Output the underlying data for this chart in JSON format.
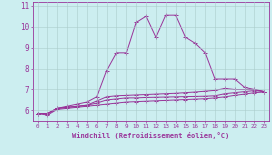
{
  "xlabel": "Windchill (Refroidissement éolien,°C)",
  "background_color": "#cceef0",
  "grid_color": "#aacccc",
  "line_color": "#993399",
  "xlim": [
    -0.5,
    23.5
  ],
  "ylim": [
    5.5,
    11.2
  ],
  "xticks": [
    0,
    1,
    2,
    3,
    4,
    5,
    6,
    7,
    8,
    9,
    10,
    11,
    12,
    13,
    14,
    15,
    16,
    17,
    18,
    19,
    20,
    21,
    22,
    23
  ],
  "yticks": [
    6,
    7,
    8,
    9,
    10,
    11
  ],
  "series": [
    [
      5.85,
      5.85,
      6.1,
      6.15,
      6.2,
      6.25,
      6.35,
      6.5,
      6.55,
      6.6,
      6.6,
      6.62,
      6.63,
      6.64,
      6.65,
      6.66,
      6.67,
      6.68,
      6.7,
      6.8,
      6.85,
      6.9,
      6.95,
      6.9
    ],
    [
      5.85,
      5.78,
      6.05,
      6.1,
      6.15,
      6.2,
      6.25,
      6.3,
      6.35,
      6.4,
      6.42,
      6.44,
      6.46,
      6.48,
      6.5,
      6.52,
      6.54,
      6.56,
      6.6,
      6.65,
      6.72,
      6.78,
      6.85,
      6.88
    ],
    [
      5.85,
      5.85,
      6.1,
      6.15,
      6.2,
      6.25,
      6.45,
      6.65,
      6.7,
      6.72,
      6.74,
      6.76,
      6.78,
      6.8,
      6.82,
      6.85,
      6.88,
      6.92,
      6.96,
      7.05,
      7.0,
      7.0,
      7.0,
      6.9
    ],
    [
      5.85,
      5.85,
      6.1,
      6.2,
      6.3,
      6.4,
      6.65,
      7.9,
      8.75,
      8.75,
      10.2,
      10.5,
      9.5,
      10.55,
      10.55,
      9.5,
      9.2,
      8.75,
      7.5,
      7.5,
      7.5,
      7.1,
      7.0,
      6.9
    ]
  ],
  "series_smooth": [
    [
      5.85,
      5.85,
      6.1,
      6.15,
      6.2,
      6.25,
      6.35,
      6.5,
      6.55,
      6.6,
      6.6,
      6.62,
      6.63,
      6.64,
      6.65,
      6.66,
      6.67,
      6.68,
      6.7,
      6.8,
      6.85,
      6.9,
      6.95,
      6.9
    ],
    [
      5.85,
      5.78,
      6.05,
      6.1,
      6.15,
      6.2,
      6.25,
      6.3,
      6.35,
      6.4,
      6.42,
      6.44,
      6.46,
      6.48,
      6.5,
      6.52,
      6.54,
      6.56,
      6.6,
      6.65,
      6.72,
      6.78,
      6.85,
      6.88
    ],
    [
      5.85,
      5.85,
      6.1,
      6.15,
      6.2,
      6.25,
      6.45,
      6.65,
      6.7,
      6.72,
      6.74,
      6.76,
      6.78,
      6.8,
      6.82,
      6.85,
      6.88,
      6.92,
      6.96,
      7.05,
      7.0,
      7.0,
      7.0,
      6.9
    ]
  ],
  "marker_sizes": [
    2.5,
    2.5,
    2.5,
    2.5
  ]
}
